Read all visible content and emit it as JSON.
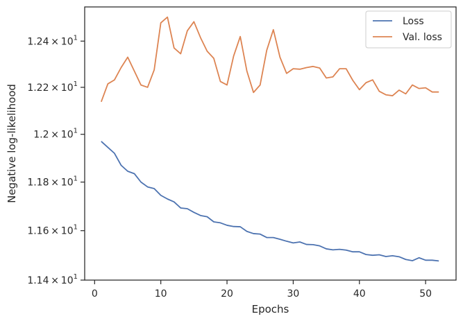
{
  "chart_data": {
    "type": "line",
    "xlabel": "Epochs",
    "ylabel": "Negative log-likelihood",
    "xlim": [
      -1.5,
      54.6
    ],
    "ylim": [
      11.4,
      12.55
    ],
    "yscale": "log",
    "grid": false,
    "legend": "top-right",
    "x_ticks": [
      {
        "value": 0,
        "label": "0"
      },
      {
        "value": 10,
        "label": "10"
      },
      {
        "value": 20,
        "label": "20"
      },
      {
        "value": 30,
        "label": "30"
      },
      {
        "value": 40,
        "label": "40"
      },
      {
        "value": 50,
        "label": "50"
      }
    ],
    "y_ticks": [
      {
        "value": 11.4,
        "mantissa": "1.14",
        "times": "×",
        "base": "10",
        "exp": "1"
      },
      {
        "value": 11.6,
        "mantissa": "1.16",
        "times": "×",
        "base": "10",
        "exp": "1"
      },
      {
        "value": 11.8,
        "mantissa": "1.18",
        "times": "×",
        "base": "10",
        "exp": "1"
      },
      {
        "value": 12.0,
        "mantissa": "1.2",
        "times": "×",
        "base": "10",
        "exp": "1"
      },
      {
        "value": 12.2,
        "mantissa": "1.22",
        "times": "×",
        "base": "10",
        "exp": "1"
      },
      {
        "value": 12.4,
        "mantissa": "1.24",
        "times": "×",
        "base": "10",
        "exp": "1"
      }
    ],
    "x": [
      1,
      2,
      3,
      4,
      5,
      6,
      7,
      8,
      9,
      10,
      11,
      12,
      13,
      14,
      15,
      16,
      17,
      18,
      19,
      20,
      21,
      22,
      23,
      24,
      25,
      26,
      27,
      28,
      29,
      30,
      31,
      32,
      33,
      34,
      35,
      36,
      37,
      38,
      39,
      40,
      41,
      42,
      43,
      44,
      45,
      46,
      47,
      48,
      49,
      50,
      51,
      52
    ],
    "series": [
      {
        "name": "Loss",
        "color": "#4c72b0",
        "values": [
          11.97,
          11.945,
          11.92,
          11.87,
          11.845,
          11.835,
          11.8,
          11.78,
          11.773,
          11.745,
          11.73,
          11.718,
          11.693,
          11.69,
          11.675,
          11.662,
          11.657,
          11.636,
          11.632,
          11.622,
          11.617,
          11.616,
          11.597,
          11.588,
          11.586,
          11.572,
          11.572,
          11.565,
          11.557,
          11.55,
          11.554,
          11.544,
          11.543,
          11.538,
          11.526,
          11.522,
          11.524,
          11.521,
          11.514,
          11.514,
          11.503,
          11.5,
          11.502,
          11.495,
          11.498,
          11.494,
          11.483,
          11.478,
          11.49,
          11.48,
          11.48,
          11.477
        ]
      },
      {
        "name": "Val. loss",
        "color": "#dd8452",
        "values": [
          12.138,
          12.215,
          12.232,
          12.285,
          12.33,
          12.27,
          12.21,
          12.2,
          12.275,
          12.48,
          12.505,
          12.37,
          12.345,
          12.445,
          12.485,
          12.415,
          12.356,
          12.325,
          12.225,
          12.21,
          12.335,
          12.42,
          12.27,
          12.178,
          12.21,
          12.36,
          12.45,
          12.33,
          12.26,
          12.28,
          12.278,
          12.285,
          12.29,
          12.283,
          12.24,
          12.245,
          12.28,
          12.28,
          12.23,
          12.19,
          12.22,
          12.232,
          12.183,
          12.168,
          12.164,
          12.188,
          12.172,
          12.21,
          12.195,
          12.198,
          12.18,
          12.18
        ]
      }
    ]
  }
}
